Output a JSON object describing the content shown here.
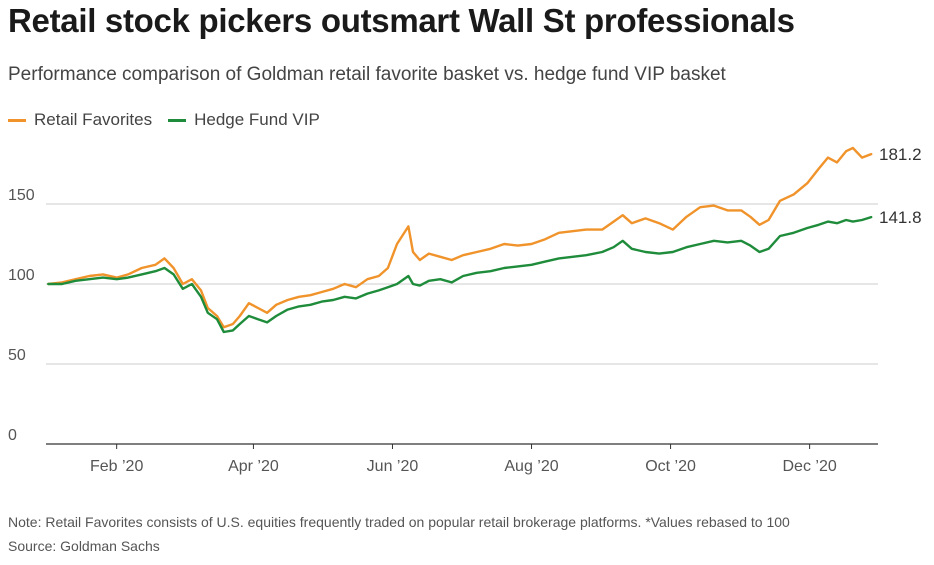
{
  "title": "Retail stock pickers outsmart Wall St professionals",
  "subtitle": "Performance comparison of Goldman retail favorite basket vs. hedge fund VIP basket",
  "note": "Note: Retail Favorites consists of U.S. equities frequently traded on popular retail brokerage platforms. *Values rebased to 100",
  "source": "Source: Goldman Sachs",
  "colors": {
    "retail": "#f0932b",
    "hedge": "#1e8c3a",
    "grid": "#cccccc",
    "axis": "#333333"
  },
  "chart_data": {
    "type": "line",
    "ylim": [
      0,
      190
    ],
    "yticks": [
      0,
      50,
      100,
      150
    ],
    "xlim": [
      "2020-01-01",
      "2020-12-31"
    ],
    "xticks": [
      {
        "date": "2020-02-01",
        "label": "Feb ’20"
      },
      {
        "date": "2020-04-01",
        "label": "Apr ’20"
      },
      {
        "date": "2020-06-01",
        "label": "Jun ’20"
      },
      {
        "date": "2020-08-01",
        "label": "Aug ’20"
      },
      {
        "date": "2020-10-01",
        "label": "Oct ’20"
      },
      {
        "date": "2020-12-01",
        "label": "Dec ’20"
      }
    ],
    "grid": true,
    "legend_position": "top-left",
    "series": [
      {
        "name": "Retail Favorites",
        "end_label": "181.2",
        "points": [
          [
            "2020-01-02",
            100
          ],
          [
            "2020-01-08",
            101
          ],
          [
            "2020-01-14",
            103
          ],
          [
            "2020-01-20",
            105
          ],
          [
            "2020-01-26",
            106
          ],
          [
            "2020-02-01",
            104
          ],
          [
            "2020-02-06",
            106
          ],
          [
            "2020-02-12",
            110
          ],
          [
            "2020-02-18",
            112
          ],
          [
            "2020-02-22",
            116
          ],
          [
            "2020-02-26",
            110
          ],
          [
            "2020-03-01",
            100
          ],
          [
            "2020-03-05",
            103
          ],
          [
            "2020-03-09",
            96
          ],
          [
            "2020-03-12",
            85
          ],
          [
            "2020-03-16",
            80
          ],
          [
            "2020-03-19",
            73
          ],
          [
            "2020-03-23",
            75
          ],
          [
            "2020-03-26",
            80
          ],
          [
            "2020-03-30",
            88
          ],
          [
            "2020-04-03",
            85
          ],
          [
            "2020-04-07",
            82
          ],
          [
            "2020-04-11",
            87
          ],
          [
            "2020-04-16",
            90
          ],
          [
            "2020-04-21",
            92
          ],
          [
            "2020-04-26",
            93
          ],
          [
            "2020-05-01",
            95
          ],
          [
            "2020-05-06",
            97
          ],
          [
            "2020-05-11",
            100
          ],
          [
            "2020-05-16",
            98
          ],
          [
            "2020-05-21",
            103
          ],
          [
            "2020-05-26",
            105
          ],
          [
            "2020-05-30",
            110
          ],
          [
            "2020-06-03",
            125
          ],
          [
            "2020-06-08",
            136
          ],
          [
            "2020-06-10",
            120
          ],
          [
            "2020-06-13",
            115
          ],
          [
            "2020-06-17",
            119
          ],
          [
            "2020-06-22",
            117
          ],
          [
            "2020-06-27",
            115
          ],
          [
            "2020-07-02",
            118
          ],
          [
            "2020-07-08",
            120
          ],
          [
            "2020-07-14",
            122
          ],
          [
            "2020-07-20",
            125
          ],
          [
            "2020-07-26",
            124
          ],
          [
            "2020-08-01",
            125
          ],
          [
            "2020-08-07",
            128
          ],
          [
            "2020-08-13",
            132
          ],
          [
            "2020-08-19",
            133
          ],
          [
            "2020-08-25",
            134
          ],
          [
            "2020-09-01",
            134
          ],
          [
            "2020-09-06",
            139
          ],
          [
            "2020-09-10",
            143
          ],
          [
            "2020-09-14",
            138
          ],
          [
            "2020-09-20",
            141
          ],
          [
            "2020-09-26",
            138
          ],
          [
            "2020-10-02",
            134
          ],
          [
            "2020-10-08",
            142
          ],
          [
            "2020-10-14",
            148
          ],
          [
            "2020-10-20",
            149
          ],
          [
            "2020-10-26",
            146
          ],
          [
            "2020-11-01",
            146
          ],
          [
            "2020-11-05",
            142
          ],
          [
            "2020-11-09",
            137
          ],
          [
            "2020-11-13",
            140
          ],
          [
            "2020-11-18",
            152
          ],
          [
            "2020-11-24",
            156
          ],
          [
            "2020-11-30",
            163
          ],
          [
            "2020-12-05",
            172
          ],
          [
            "2020-12-09",
            179
          ],
          [
            "2020-12-13",
            176
          ],
          [
            "2020-12-17",
            183
          ],
          [
            "2020-12-20",
            185
          ],
          [
            "2020-12-24",
            179
          ],
          [
            "2020-12-28",
            181.2
          ]
        ]
      },
      {
        "name": "Hedge Fund VIP",
        "end_label": "141.8",
        "points": [
          [
            "2020-01-02",
            100
          ],
          [
            "2020-01-08",
            100
          ],
          [
            "2020-01-14",
            102
          ],
          [
            "2020-01-20",
            103
          ],
          [
            "2020-01-26",
            104
          ],
          [
            "2020-02-01",
            103
          ],
          [
            "2020-02-06",
            104
          ],
          [
            "2020-02-12",
            106
          ],
          [
            "2020-02-18",
            108
          ],
          [
            "2020-02-22",
            110
          ],
          [
            "2020-02-26",
            106
          ],
          [
            "2020-03-01",
            97
          ],
          [
            "2020-03-05",
            100
          ],
          [
            "2020-03-09",
            92
          ],
          [
            "2020-03-12",
            82
          ],
          [
            "2020-03-16",
            78
          ],
          [
            "2020-03-19",
            70
          ],
          [
            "2020-03-23",
            71
          ],
          [
            "2020-03-26",
            75
          ],
          [
            "2020-03-30",
            80
          ],
          [
            "2020-04-03",
            78
          ],
          [
            "2020-04-07",
            76
          ],
          [
            "2020-04-11",
            80
          ],
          [
            "2020-04-16",
            84
          ],
          [
            "2020-04-21",
            86
          ],
          [
            "2020-04-26",
            87
          ],
          [
            "2020-05-01",
            89
          ],
          [
            "2020-05-06",
            90
          ],
          [
            "2020-05-11",
            92
          ],
          [
            "2020-05-16",
            91
          ],
          [
            "2020-05-21",
            94
          ],
          [
            "2020-05-26",
            96
          ],
          [
            "2020-05-30",
            98
          ],
          [
            "2020-06-03",
            100
          ],
          [
            "2020-06-08",
            105
          ],
          [
            "2020-06-10",
            100
          ],
          [
            "2020-06-13",
            99
          ],
          [
            "2020-06-17",
            102
          ],
          [
            "2020-06-22",
            103
          ],
          [
            "2020-06-27",
            101
          ],
          [
            "2020-07-02",
            105
          ],
          [
            "2020-07-08",
            107
          ],
          [
            "2020-07-14",
            108
          ],
          [
            "2020-07-20",
            110
          ],
          [
            "2020-07-26",
            111
          ],
          [
            "2020-08-01",
            112
          ],
          [
            "2020-08-07",
            114
          ],
          [
            "2020-08-13",
            116
          ],
          [
            "2020-08-19",
            117
          ],
          [
            "2020-08-25",
            118
          ],
          [
            "2020-09-01",
            120
          ],
          [
            "2020-09-06",
            123
          ],
          [
            "2020-09-10",
            127
          ],
          [
            "2020-09-14",
            122
          ],
          [
            "2020-09-20",
            120
          ],
          [
            "2020-09-26",
            119
          ],
          [
            "2020-10-02",
            120
          ],
          [
            "2020-10-08",
            123
          ],
          [
            "2020-10-14",
            125
          ],
          [
            "2020-10-20",
            127
          ],
          [
            "2020-10-26",
            126
          ],
          [
            "2020-11-01",
            127
          ],
          [
            "2020-11-05",
            124
          ],
          [
            "2020-11-09",
            120
          ],
          [
            "2020-11-13",
            122
          ],
          [
            "2020-11-18",
            130
          ],
          [
            "2020-11-24",
            132
          ],
          [
            "2020-11-30",
            135
          ],
          [
            "2020-12-05",
            137
          ],
          [
            "2020-12-09",
            139
          ],
          [
            "2020-12-13",
            138
          ],
          [
            "2020-12-17",
            140
          ],
          [
            "2020-12-20",
            139
          ],
          [
            "2020-12-24",
            140
          ],
          [
            "2020-12-28",
            141.8
          ]
        ]
      }
    ]
  }
}
